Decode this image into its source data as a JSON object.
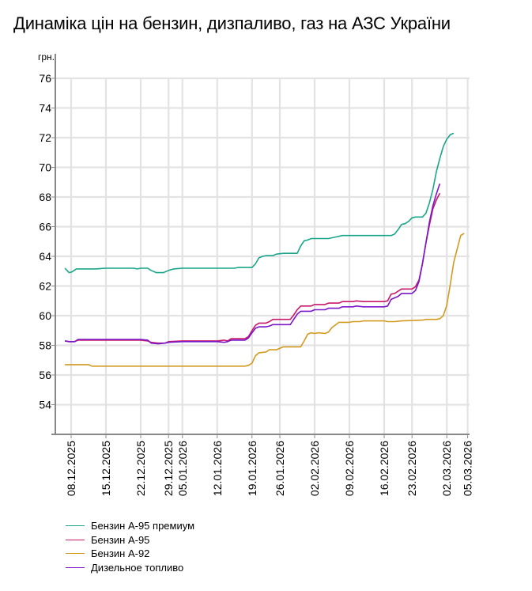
{
  "title": "Динаміка цін на бензин, дизпаливо, газ на АЗС України",
  "chart_data": {
    "type": "line",
    "title": "Динаміка цін на бензин, дизпаливо, газ на АЗС України",
    "ylabel": "грн.",
    "xlabel": "",
    "ylim": [
      52,
      77
    ],
    "yticks": [
      54,
      56,
      58,
      60,
      62,
      64,
      66,
      68,
      70,
      72,
      74,
      76
    ],
    "xlim": [
      -2,
      115
    ],
    "x_ticks": [
      {
        "label": "08.12.2025",
        "x": 0
      },
      {
        "label": "15.12.2025",
        "x": 10
      },
      {
        "label": "22.12.2025",
        "x": 20
      },
      {
        "label": "29.12.2025",
        "x": 28
      },
      {
        "label": "05.01.2026",
        "x": 32
      },
      {
        "label": "12.01.2026",
        "x": 42
      },
      {
        "label": "19.01.2026",
        "x": 52
      },
      {
        "label": "26.01.2026",
        "x": 60
      },
      {
        "label": "02.02.2026",
        "x": 70
      },
      {
        "label": "09.02.2026",
        "x": 80
      },
      {
        "label": "16.02.2026",
        "x": 90
      },
      {
        "label": "23.02.2026",
        "x": 98
      },
      {
        "label": "02.03.2026",
        "x": 108
      },
      {
        "label": "05.03.2026",
        "x": 114
      }
    ],
    "grid": true,
    "legend_position": "bottom-left",
    "series": [
      {
        "name": "Бензин А-95 премиум",
        "color": "#1aa58a",
        "points": [
          [
            -1.8,
            63.2
          ],
          [
            -0.6,
            62.9
          ],
          [
            0.2,
            62.95
          ],
          [
            1.5,
            63.15
          ],
          [
            7,
            63.15
          ],
          [
            10,
            63.2
          ],
          [
            18,
            63.2
          ],
          [
            19,
            63.15
          ],
          [
            20,
            63.2
          ],
          [
            22,
            63.2
          ],
          [
            23,
            63.05
          ],
          [
            24.5,
            62.9
          ],
          [
            26.5,
            62.9
          ],
          [
            28,
            63.05
          ],
          [
            29.5,
            63.15
          ],
          [
            32,
            63.2
          ],
          [
            36,
            63.2
          ],
          [
            47,
            63.2
          ],
          [
            48,
            63.25
          ],
          [
            52,
            63.25
          ],
          [
            53,
            63.5
          ],
          [
            54,
            63.9
          ],
          [
            55,
            64.0
          ],
          [
            56,
            64.05
          ],
          [
            58,
            64.05
          ],
          [
            59,
            64.15
          ],
          [
            61,
            64.2
          ],
          [
            65,
            64.2
          ],
          [
            66,
            64.7
          ],
          [
            67,
            65.05
          ],
          [
            68,
            65.1
          ],
          [
            69,
            65.2
          ],
          [
            74,
            65.2
          ],
          [
            76,
            65.3
          ],
          [
            78,
            65.4
          ],
          [
            92,
            65.4
          ],
          [
            93,
            65.5
          ],
          [
            94,
            65.8
          ],
          [
            95,
            66.15
          ],
          [
            96,
            66.2
          ],
          [
            97,
            66.35
          ],
          [
            98,
            66.6
          ],
          [
            99,
            66.65
          ],
          [
            101,
            66.65
          ],
          [
            102,
            66.9
          ],
          [
            103,
            67.6
          ],
          [
            104,
            68.5
          ],
          [
            105,
            69.7
          ],
          [
            106,
            70.6
          ],
          [
            107,
            71.4
          ],
          [
            108,
            71.9
          ],
          [
            109,
            72.2
          ],
          [
            110,
            72.3
          ]
        ]
      },
      {
        "name": "Бензин А-95",
        "color": "#c8186c",
        "points": [
          [
            -1.8,
            58.3
          ],
          [
            -0.6,
            58.25
          ],
          [
            1,
            58.25
          ],
          [
            2,
            58.35
          ],
          [
            7,
            58.35
          ],
          [
            10,
            58.35
          ],
          [
            20,
            58.35
          ],
          [
            22,
            58.3
          ],
          [
            23,
            58.2
          ],
          [
            25,
            58.15
          ],
          [
            27,
            58.15
          ],
          [
            28,
            58.25
          ],
          [
            32,
            58.3
          ],
          [
            42,
            58.3
          ],
          [
            44,
            58.35
          ],
          [
            45,
            58.3
          ],
          [
            46,
            58.45
          ],
          [
            50,
            58.45
          ],
          [
            51,
            58.6
          ],
          [
            52,
            59.0
          ],
          [
            53,
            59.35
          ],
          [
            54,
            59.5
          ],
          [
            56,
            59.5
          ],
          [
            57,
            59.6
          ],
          [
            58,
            59.75
          ],
          [
            63,
            59.75
          ],
          [
            64,
            60.05
          ],
          [
            65,
            60.4
          ],
          [
            66,
            60.65
          ],
          [
            69,
            60.65
          ],
          [
            70,
            60.75
          ],
          [
            73,
            60.75
          ],
          [
            74,
            60.85
          ],
          [
            77,
            60.85
          ],
          [
            78,
            60.95
          ],
          [
            81,
            60.95
          ],
          [
            82,
            61.0
          ],
          [
            84,
            60.95
          ],
          [
            90,
            60.95
          ],
          [
            91,
            61.0
          ],
          [
            92,
            61.45
          ],
          [
            93,
            61.5
          ],
          [
            94,
            61.65
          ],
          [
            95,
            61.8
          ],
          [
            98,
            61.8
          ],
          [
            99,
            61.95
          ],
          [
            100,
            62.4
          ],
          [
            101,
            63.5
          ],
          [
            102,
            64.9
          ],
          [
            103,
            66.1
          ],
          [
            104,
            67.2
          ],
          [
            105,
            67.8
          ],
          [
            106,
            68.25
          ]
        ]
      },
      {
        "name": "Бензин А-92",
        "color": "#d39a21",
        "points": [
          [
            -1.8,
            56.7
          ],
          [
            2,
            56.7
          ],
          [
            5,
            56.7
          ],
          [
            6,
            56.6
          ],
          [
            10,
            56.6
          ],
          [
            30,
            56.6
          ],
          [
            50,
            56.6
          ],
          [
            51,
            56.65
          ],
          [
            52,
            56.8
          ],
          [
            53,
            57.3
          ],
          [
            54,
            57.5
          ],
          [
            56,
            57.55
          ],
          [
            57,
            57.7
          ],
          [
            59,
            57.7
          ],
          [
            60,
            57.8
          ],
          [
            61,
            57.9
          ],
          [
            66,
            57.9
          ],
          [
            67,
            58.3
          ],
          [
            68,
            58.75
          ],
          [
            69,
            58.85
          ],
          [
            70,
            58.8
          ],
          [
            71,
            58.85
          ],
          [
            73,
            58.8
          ],
          [
            74,
            58.9
          ],
          [
            75,
            59.2
          ],
          [
            77,
            59.55
          ],
          [
            79,
            59.55
          ],
          [
            80,
            59.55
          ],
          [
            81,
            59.6
          ],
          [
            83,
            59.6
          ],
          [
            84,
            59.65
          ],
          [
            90,
            59.65
          ],
          [
            91,
            59.6
          ],
          [
            93,
            59.6
          ],
          [
            95,
            59.65
          ],
          [
            101,
            59.7
          ],
          [
            102,
            59.75
          ],
          [
            105,
            59.75
          ],
          [
            106,
            59.8
          ],
          [
            107,
            60.0
          ],
          [
            108,
            60.7
          ],
          [
            109,
            62.1
          ],
          [
            110,
            63.6
          ],
          [
            111,
            64.5
          ],
          [
            112,
            65.4
          ],
          [
            113,
            65.55
          ]
        ]
      },
      {
        "name": "Дизельное топливо",
        "color": "#7a16c9",
        "points": [
          [
            -1.8,
            58.3
          ],
          [
            -0.6,
            58.25
          ],
          [
            1,
            58.25
          ],
          [
            2,
            58.4
          ],
          [
            7,
            58.4
          ],
          [
            10,
            58.4
          ],
          [
            20,
            58.4
          ],
          [
            22,
            58.35
          ],
          [
            23,
            58.15
          ],
          [
            25,
            58.1
          ],
          [
            27,
            58.15
          ],
          [
            28,
            58.2
          ],
          [
            32,
            58.25
          ],
          [
            42,
            58.25
          ],
          [
            44,
            58.2
          ],
          [
            45,
            58.25
          ],
          [
            46,
            58.35
          ],
          [
            50,
            58.35
          ],
          [
            51,
            58.5
          ],
          [
            52,
            58.85
          ],
          [
            53,
            59.15
          ],
          [
            54,
            59.25
          ],
          [
            56,
            59.25
          ],
          [
            57,
            59.3
          ],
          [
            58,
            59.4
          ],
          [
            63,
            59.4
          ],
          [
            64,
            59.75
          ],
          [
            65,
            60.1
          ],
          [
            66,
            60.3
          ],
          [
            69,
            60.3
          ],
          [
            70,
            60.4
          ],
          [
            73,
            60.4
          ],
          [
            74,
            60.5
          ],
          [
            77,
            60.5
          ],
          [
            78,
            60.6
          ],
          [
            81,
            60.6
          ],
          [
            82,
            60.65
          ],
          [
            84,
            60.6
          ],
          [
            90,
            60.6
          ],
          [
            91,
            60.65
          ],
          [
            92,
            61.1
          ],
          [
            93,
            61.2
          ],
          [
            94,
            61.3
          ],
          [
            95,
            61.5
          ],
          [
            98,
            61.5
          ],
          [
            99,
            61.7
          ],
          [
            100,
            62.3
          ],
          [
            101,
            63.5
          ],
          [
            102,
            64.9
          ],
          [
            103,
            66.3
          ],
          [
            104,
            67.4
          ],
          [
            105,
            68.2
          ],
          [
            106,
            68.9
          ]
        ]
      }
    ]
  }
}
